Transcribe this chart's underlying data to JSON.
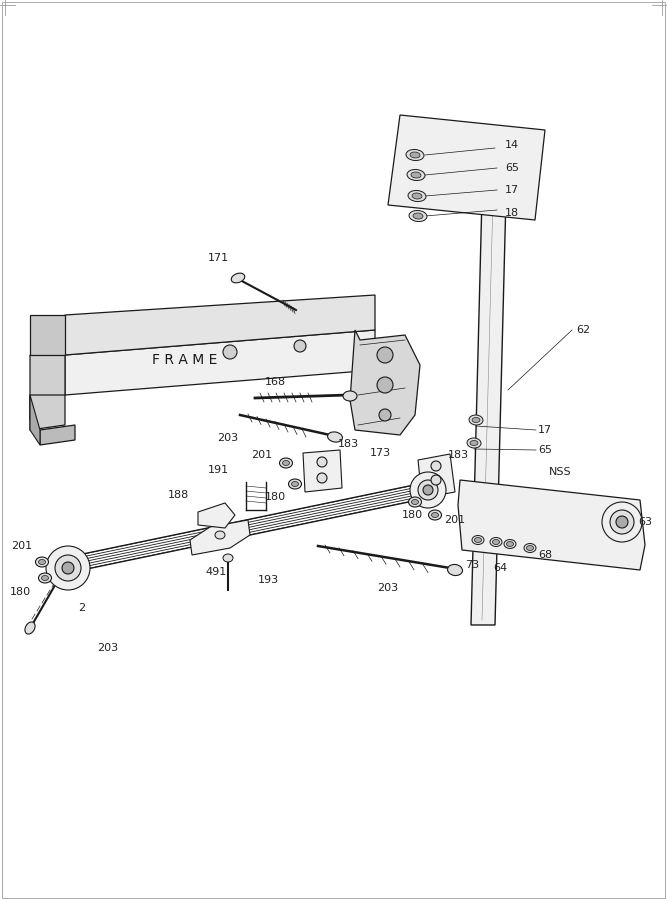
{
  "bg_color": "#ffffff",
  "line_color": "#1a1a1a",
  "figsize": [
    6.67,
    9.0
  ],
  "dpi": 100,
  "line_color_dim": "#555555",
  "gray_fill": "#e0e0e0",
  "light_fill": "#f0f0f0",
  "med_fill": "#c8c8c8"
}
